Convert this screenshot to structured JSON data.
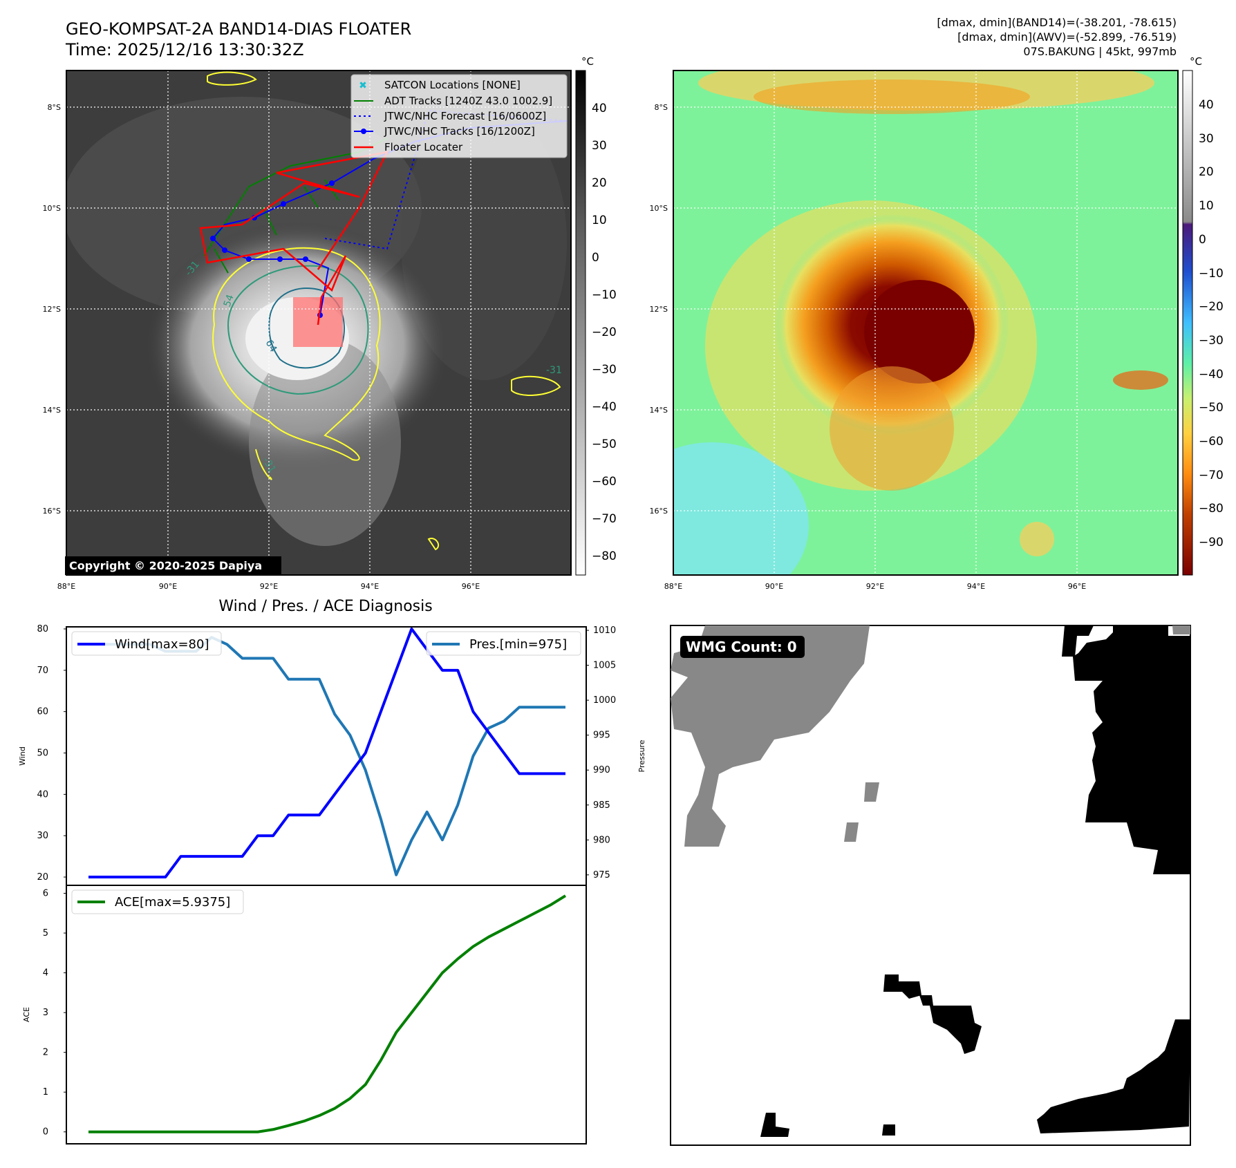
{
  "header": {
    "title_line1": "GEO-KOMPSAT-2A BAND14-DIAS FLOATER",
    "title_line2": "Time: 2025/12/16 13:30:32Z",
    "info_line1": "[dmax, dmin](BAND14)=(-38.201, -78.615)",
    "info_line2": "[dmax, dmin](AWV)=(-52.899, -76.519)",
    "info_line3": "07S.BAKUNG | 45kt, 997mb"
  },
  "maps": {
    "lat_labels": [
      "8°S",
      "10°S",
      "12°S",
      "14°S",
      "16°S"
    ],
    "lon_labels": [
      "88°E",
      "90°E",
      "92°E",
      "94°E",
      "96°E"
    ],
    "colorbar_unit": "°C",
    "ir_colorbar_ticks": [
      "40",
      "30",
      "20",
      "10",
      "0",
      "−10",
      "−20",
      "−30",
      "−40",
      "−50",
      "−60",
      "−70",
      "−80"
    ],
    "awv_colorbar_ticks": [
      "40",
      "30",
      "20",
      "10",
      "0",
      "−10",
      "−20",
      "−30",
      "−40",
      "−50",
      "−60",
      "−70",
      "−80",
      "−90"
    ],
    "copyright": "Copyright © 2020-2025 Dapiya",
    "contour_labels": [
      "-31",
      "54",
      "64",
      "-31",
      "-31"
    ],
    "legend": [
      {
        "label": "SATCON Locations [NONE]",
        "color": "#17becf"
      },
      {
        "label": "ADT Tracks [1240Z 43.0 1002.9]",
        "color": "#008000"
      },
      {
        "label": "JTWC/NHC Forecast [16/0600Z]",
        "color": "#0000ff"
      },
      {
        "label": "JTWC/NHC Tracks [16/1200Z]",
        "color": "#0000ff"
      },
      {
        "label": "Floater Locater",
        "color": "#ff0000"
      }
    ]
  },
  "diagnosis": {
    "title": "Wind / Pres. / ACE Diagnosis"
  },
  "wmg": {
    "label": "WMG Count: 0"
  },
  "chart_data": [
    {
      "type": "line",
      "name": "wind-pressure",
      "x": [
        0,
        1,
        2,
        3,
        4,
        5,
        6,
        7,
        8,
        9,
        10,
        11,
        12,
        13,
        14,
        15,
        16,
        17,
        18,
        19,
        20,
        21,
        22,
        23,
        24,
        25,
        26,
        27,
        28,
        29,
        30,
        31
      ],
      "series": [
        {
          "name": "Wind[max=80]",
          "axis": "left",
          "color": "#0000ff",
          "values": [
            20,
            20,
            20,
            20,
            20,
            20,
            25,
            25,
            25,
            25,
            25,
            30,
            30,
            35,
            35,
            35,
            40,
            45,
            50,
            60,
            70,
            80,
            75,
            70,
            70,
            60,
            55,
            50,
            45,
            45,
            45,
            45
          ]
        },
        {
          "name": "Pres.[min=975]",
          "axis": "right",
          "color": "#1f77b4",
          "values": [
            1008,
            1008,
            1008,
            1008,
            1008,
            1007,
            1007,
            1007,
            1009,
            1008,
            1006,
            1006,
            1006,
            1003,
            1003,
            1003,
            998,
            995,
            990,
            983,
            975,
            980,
            984,
            980,
            985,
            992,
            996,
            997,
            999,
            999,
            999,
            999
          ]
        }
      ],
      "ylabel": "Wind",
      "ylabel_right": "Pressure",
      "yticks": [
        "20",
        "30",
        "40",
        "50",
        "60",
        "70",
        "80"
      ],
      "yticks_right": [
        "975",
        "980",
        "985",
        "990",
        "995",
        "1000",
        "1005",
        "1010"
      ],
      "ylim": [
        18,
        80.5
      ],
      "ylim_right": [
        973.5,
        1010.5
      ]
    },
    {
      "type": "line",
      "name": "ace",
      "x": [
        0,
        1,
        2,
        3,
        4,
        5,
        6,
        7,
        8,
        9,
        10,
        11,
        12,
        13,
        14,
        15,
        16,
        17,
        18,
        19,
        20,
        21,
        22,
        23,
        24,
        25,
        26,
        27,
        28,
        29,
        30,
        31
      ],
      "series": [
        {
          "name": "ACE[max=5.9375]",
          "color": "#008000",
          "values": [
            0,
            0,
            0,
            0,
            0,
            0,
            0,
            0,
            0,
            0,
            0,
            0,
            0.06,
            0.16,
            0.27,
            0.41,
            0.59,
            0.84,
            1.19,
            1.8,
            2.5,
            3.0,
            3.5,
            4.0,
            4.35,
            4.66,
            4.9,
            5.1,
            5.3,
            5.5,
            5.7,
            5.9375
          ]
        }
      ],
      "ylabel": "ACE",
      "yticks": [
        "0",
        "1",
        "2",
        "3",
        "4",
        "5",
        "6"
      ],
      "ylim": [
        -0.3,
        6.2
      ]
    }
  ]
}
